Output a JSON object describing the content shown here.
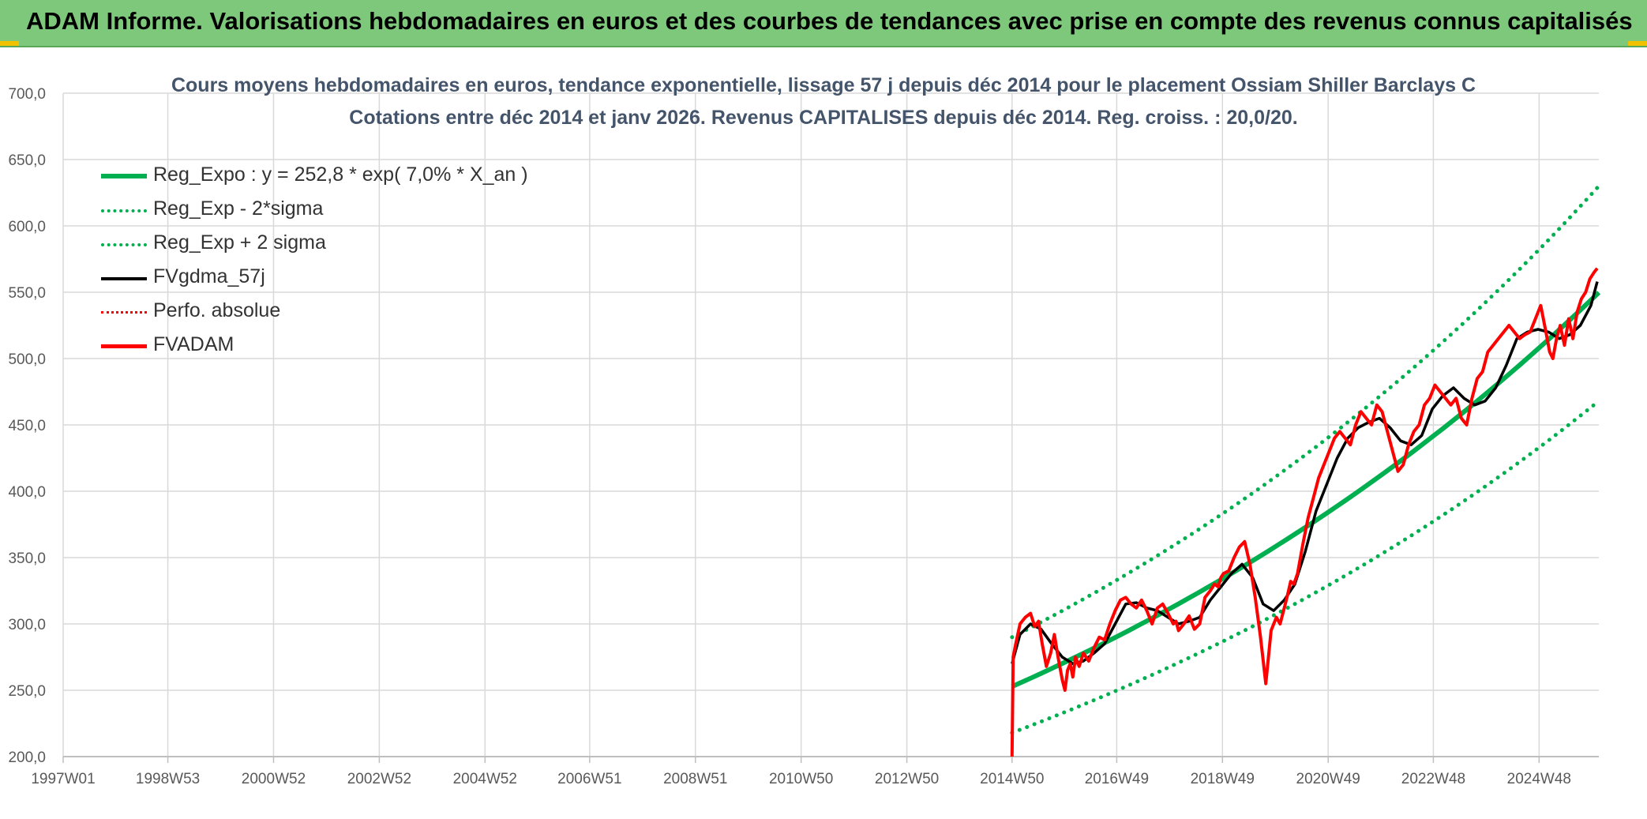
{
  "banner": {
    "title": "ADAM Informe. Valorisations hebdomadaires en euros et des courbes de tendances avec prise en compte des revenus connus capitalisés"
  },
  "colors": {
    "banner": "#7dc87a",
    "trend": "#00b050",
    "band": "#00b050",
    "smoothed": "#000000",
    "absolute": "#ff0000",
    "fvadam": "#ff0000",
    "grid": "#d9d9d9",
    "axis_text": "#595959",
    "title": "#44546a"
  },
  "chart_data": {
    "type": "line",
    "title_line1": "Cours moyens hebdomadaires en euros, tendance exponentielle, lissage 57 j depuis déc 2014 pour le placement Ossiam Shiller Barclays C",
    "title_line2": "Cotations entre déc 2014 et janv 2026. Revenus CAPITALISES depuis déc 2014. Reg. croiss. : 20,0/20.",
    "x_tick_labels": [
      "1997W01",
      "1998W53",
      "2000W52",
      "2002W52",
      "2004W52",
      "2006W51",
      "2008W51",
      "2010W50",
      "2012W50",
      "2014W50",
      "2016W49",
      "2018W49",
      "2020W49",
      "2022W48",
      "2024W48"
    ],
    "x_range": [
      "1997W01",
      "2026W03"
    ],
    "ylim": [
      200,
      700
    ],
    "y_ticks": [
      "200,0",
      "250,0",
      "300,0",
      "350,0",
      "400,0",
      "450,0",
      "500,0",
      "550,0",
      "600,0",
      "650,0",
      "700,0"
    ],
    "grid": true,
    "legend_position": "top-left",
    "legend": [
      {
        "label": "Reg_Expo : y = 252,8 * exp( 7,0% *  X_an )",
        "style": "solid-thick",
        "color": "#00b050"
      },
      {
        "label": "Reg_Exp - 2*sigma",
        "style": "dotted",
        "color": "#00b050"
      },
      {
        "label": "Reg_Exp + 2 sigma",
        "style": "dotted",
        "color": "#00b050"
      },
      {
        "label": "FVgdma_57j",
        "style": "solid",
        "color": "#000000"
      },
      {
        "label": "Perfo. absolue",
        "style": "dotted",
        "color": "#ff0000"
      },
      {
        "label": "FVADAM",
        "style": "solid-thick",
        "color": "#ff0000"
      }
    ],
    "regression": {
      "a": 252.8,
      "rate": 0.07,
      "start_year": 2014.95,
      "end_year": 2026.05
    },
    "band_lower": {
      "start": 218,
      "end": 468
    },
    "band_upper": {
      "start": 290,
      "end": 630
    },
    "series": [
      {
        "name": "FVADAM",
        "x": [
          2014.95,
          2014.97,
          2015.02,
          2015.1,
          2015.2,
          2015.3,
          2015.38,
          2015.45,
          2015.52,
          2015.6,
          2015.68,
          2015.75,
          2015.82,
          2015.9,
          2015.95,
          2016.0,
          2016.05,
          2016.1,
          2016.15,
          2016.22,
          2016.3,
          2016.4,
          2016.5,
          2016.6,
          2016.7,
          2016.8,
          2016.9,
          2017.0,
          2017.1,
          2017.2,
          2017.3,
          2017.4,
          2017.5,
          2017.6,
          2017.7,
          2017.8,
          2017.9,
          2018.0,
          2018.05,
          2018.1,
          2018.2,
          2018.3,
          2018.4,
          2018.5,
          2018.6,
          2018.7,
          2018.78,
          2018.85,
          2018.9,
          2018.95,
          2019.05,
          2019.15,
          2019.25,
          2019.35,
          2019.45,
          2019.55,
          2019.65,
          2019.75,
          2019.85,
          2019.95,
          2020.02,
          2020.1,
          2020.15,
          2020.18,
          2020.22,
          2020.28,
          2020.35,
          2020.45,
          2020.55,
          2020.65,
          2020.75,
          2020.85,
          2020.95,
          2021.05,
          2021.15,
          2021.25,
          2021.35,
          2021.45,
          2021.55,
          2021.65,
          2021.75,
          2021.85,
          2021.95,
          2022.05,
          2022.15,
          2022.25,
          2022.35,
          2022.45,
          2022.55,
          2022.65,
          2022.75,
          2022.85,
          2022.95,
          2023.05,
          2023.15,
          2023.25,
          2023.35,
          2023.45,
          2023.55,
          2023.65,
          2023.75,
          2023.85,
          2023.95,
          2024.05,
          2024.15,
          2024.25,
          2024.35,
          2024.45,
          2024.55,
          2024.65,
          2024.75,
          2024.85,
          2024.95,
          2025.05,
          2025.12,
          2025.18,
          2025.25,
          2025.32,
          2025.4,
          2025.48,
          2025.56,
          2025.64,
          2025.72,
          2025.8,
          2025.88,
          2025.96,
          2026.02
        ],
        "values": [
          200,
          275,
          285,
          300,
          305,
          308,
          298,
          302,
          285,
          268,
          278,
          292,
          275,
          258,
          250,
          265,
          270,
          260,
          275,
          268,
          278,
          272,
          282,
          290,
          288,
          300,
          310,
          318,
          320,
          315,
          312,
          318,
          310,
          300,
          312,
          315,
          308,
          300,
          302,
          295,
          300,
          306,
          296,
          300,
          320,
          325,
          330,
          328,
          335,
          338,
          340,
          350,
          358,
          362,
          345,
          320,
          290,
          255,
          295,
          305,
          300,
          312,
          320,
          325,
          332,
          330,
          338,
          360,
          380,
          395,
          410,
          420,
          430,
          440,
          445,
          440,
          435,
          450,
          460,
          455,
          450,
          465,
          460,
          445,
          430,
          415,
          420,
          435,
          445,
          450,
          465,
          470,
          480,
          475,
          470,
          465,
          470,
          455,
          450,
          470,
          485,
          490,
          505,
          510,
          515,
          520,
          525,
          520,
          515,
          518,
          520,
          530,
          540,
          520,
          505,
          500,
          515,
          525,
          510,
          530,
          515,
          535,
          545,
          550,
          560,
          565,
          568
        ],
        "color": "#ff0000"
      },
      {
        "name": "FVgdma_57j",
        "x": [
          2014.95,
          2015.1,
          2015.3,
          2015.5,
          2015.7,
          2015.9,
          2016.1,
          2016.3,
          2016.5,
          2016.7,
          2016.9,
          2017.1,
          2017.3,
          2017.5,
          2017.7,
          2017.9,
          2018.1,
          2018.3,
          2018.5,
          2018.7,
          2018.9,
          2019.1,
          2019.3,
          2019.5,
          2019.7,
          2019.9,
          2020.1,
          2020.3,
          2020.5,
          2020.7,
          2020.9,
          2021.1,
          2021.3,
          2021.5,
          2021.7,
          2021.9,
          2022.1,
          2022.3,
          2022.5,
          2022.7,
          2022.9,
          2023.1,
          2023.3,
          2023.5,
          2023.7,
          2023.9,
          2024.1,
          2024.3,
          2024.5,
          2024.7,
          2024.9,
          2025.1,
          2025.3,
          2025.5,
          2025.7,
          2025.9,
          2026.02
        ],
        "values": [
          270,
          292,
          300,
          296,
          285,
          275,
          270,
          272,
          278,
          285,
          300,
          315,
          316,
          312,
          310,
          305,
          300,
          302,
          305,
          318,
          328,
          338,
          345,
          335,
          315,
          310,
          318,
          330,
          355,
          385,
          405,
          425,
          440,
          448,
          452,
          455,
          448,
          438,
          435,
          442,
          462,
          472,
          478,
          470,
          465,
          468,
          478,
          495,
          515,
          520,
          522,
          520,
          515,
          518,
          525,
          540,
          558
        ],
        "color": "#000000"
      }
    ]
  }
}
